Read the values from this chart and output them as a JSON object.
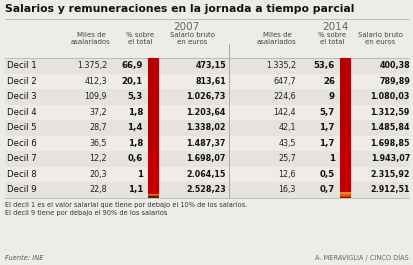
{
  "title": "Salarios y remuneraciones en la jornada a tiempo parcial",
  "rows": [
    {
      "label": "Decil 1",
      "d07_miles": "1.375,2",
      "d07_pct": "66,9",
      "d07_sal": "473,15",
      "d14_miles": "1.335,2",
      "d14_pct": "53,6",
      "d14_sal": "400,38"
    },
    {
      "label": "Decil 2",
      "d07_miles": "412,3",
      "d07_pct": "20,1",
      "d07_sal": "813,61",
      "d14_miles": "647,7",
      "d14_pct": "26",
      "d14_sal": "789,89"
    },
    {
      "label": "Decil 3",
      "d07_miles": "109,9",
      "d07_pct": "5,3",
      "d07_sal": "1.026,73",
      "d14_miles": "224,6",
      "d14_pct": "9",
      "d14_sal": "1.080,03"
    },
    {
      "label": "Decil 4",
      "d07_miles": "37,2",
      "d07_pct": "1,8",
      "d07_sal": "1.203,64",
      "d14_miles": "142,4",
      "d14_pct": "5,7",
      "d14_sal": "1.312,59"
    },
    {
      "label": "Decil 5",
      "d07_miles": "28,7",
      "d07_pct": "1,4",
      "d07_sal": "1.338,02",
      "d14_miles": "42,1",
      "d14_pct": "1,7",
      "d14_sal": "1.485,84"
    },
    {
      "label": "Decil 6",
      "d07_miles": "36,5",
      "d07_pct": "1,8",
      "d07_sal": "1.487,37",
      "d14_miles": "43,5",
      "d14_pct": "1,7",
      "d14_sal": "1.698,85"
    },
    {
      "label": "Decil 7",
      "d07_miles": "12,2",
      "d07_pct": "0,6",
      "d07_sal": "1.698,07",
      "d14_miles": "25,7",
      "d14_pct": "1",
      "d14_sal": "1.943,07"
    },
    {
      "label": "Decil 8",
      "d07_miles": "20,3",
      "d07_pct": "1",
      "d07_sal": "2.064,15",
      "d14_miles": "12,6",
      "d14_pct": "0,5",
      "d14_sal": "2.315,92"
    },
    {
      "label": "Decil 9",
      "d07_miles": "22,8",
      "d07_pct": "1,1",
      "d07_sal": "2.528,23",
      "d14_miles": "16,3",
      "d14_pct": "0,7",
      "d14_sal": "2.912,51"
    }
  ],
  "bar_colors_07": [
    "#b80000",
    "#c00000",
    "#c00000",
    "#c00000",
    "#c00000",
    "#c80000",
    "#e07020",
    "#cc4800",
    "#4a2800"
  ],
  "bar_colors_14": [
    "#b80000",
    "#c00000",
    "#c00000",
    "#c00000",
    "#c00000",
    "#e08820",
    "#e06010",
    "#c84010",
    "#4a2800"
  ],
  "bar_pcts_07": [
    66.9,
    20.1,
    5.3,
    1.8,
    1.4,
    1.8,
    0.6,
    1.0,
    1.1
  ],
  "bar_pcts_14": [
    53.6,
    26.0,
    9.0,
    5.7,
    1.7,
    1.7,
    1.0,
    0.5,
    0.7
  ],
  "note1": "El decil 1 es el valor salarial que tiene por debajo el 10% de los salarios.",
  "note2": "El decil 9 tiene por debajo el 90% de los salarios",
  "source": "Fuente: INE",
  "credit": "A. MERAVIGLIA / CINCO DÍAS",
  "bg_color": "#eeece8",
  "row_colors": [
    "#e6e2de",
    "#eeece8"
  ]
}
